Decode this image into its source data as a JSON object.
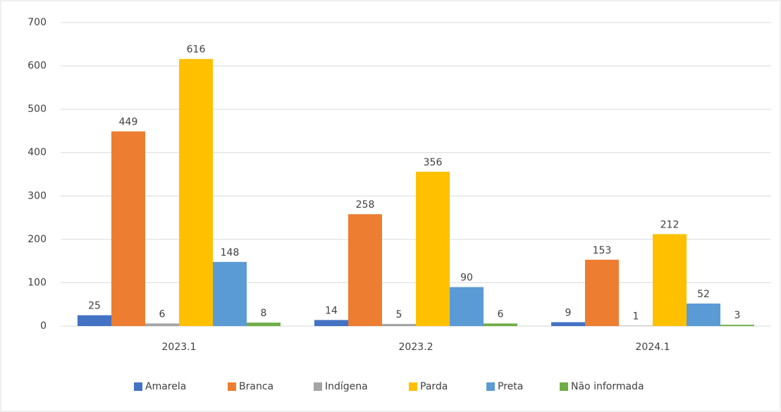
{
  "chart_data": {
    "type": "bar",
    "categories": [
      "2023.1",
      "2023.2",
      "2024.1"
    ],
    "series": [
      {
        "name": "Amarela",
        "color": "#4472c4",
        "values": [
          25,
          14,
          9
        ]
      },
      {
        "name": "Branca",
        "color": "#ed7d31",
        "values": [
          449,
          258,
          153
        ]
      },
      {
        "name": "Indígena",
        "color": "#a5a5a5",
        "values": [
          6,
          5,
          1
        ]
      },
      {
        "name": "Parda",
        "color": "#ffc000",
        "values": [
          616,
          356,
          212
        ]
      },
      {
        "name": "Preta",
        "color": "#5b9bd5",
        "values": [
          148,
          90,
          52
        ]
      },
      {
        "name": "Não informada",
        "color": "#70ad47",
        "values": [
          8,
          6,
          3
        ]
      }
    ],
    "ylim": [
      0,
      700
    ],
    "yticks": [
      0,
      100,
      200,
      300,
      400,
      500,
      600,
      700
    ],
    "grid": true,
    "legend": "bottom"
  }
}
